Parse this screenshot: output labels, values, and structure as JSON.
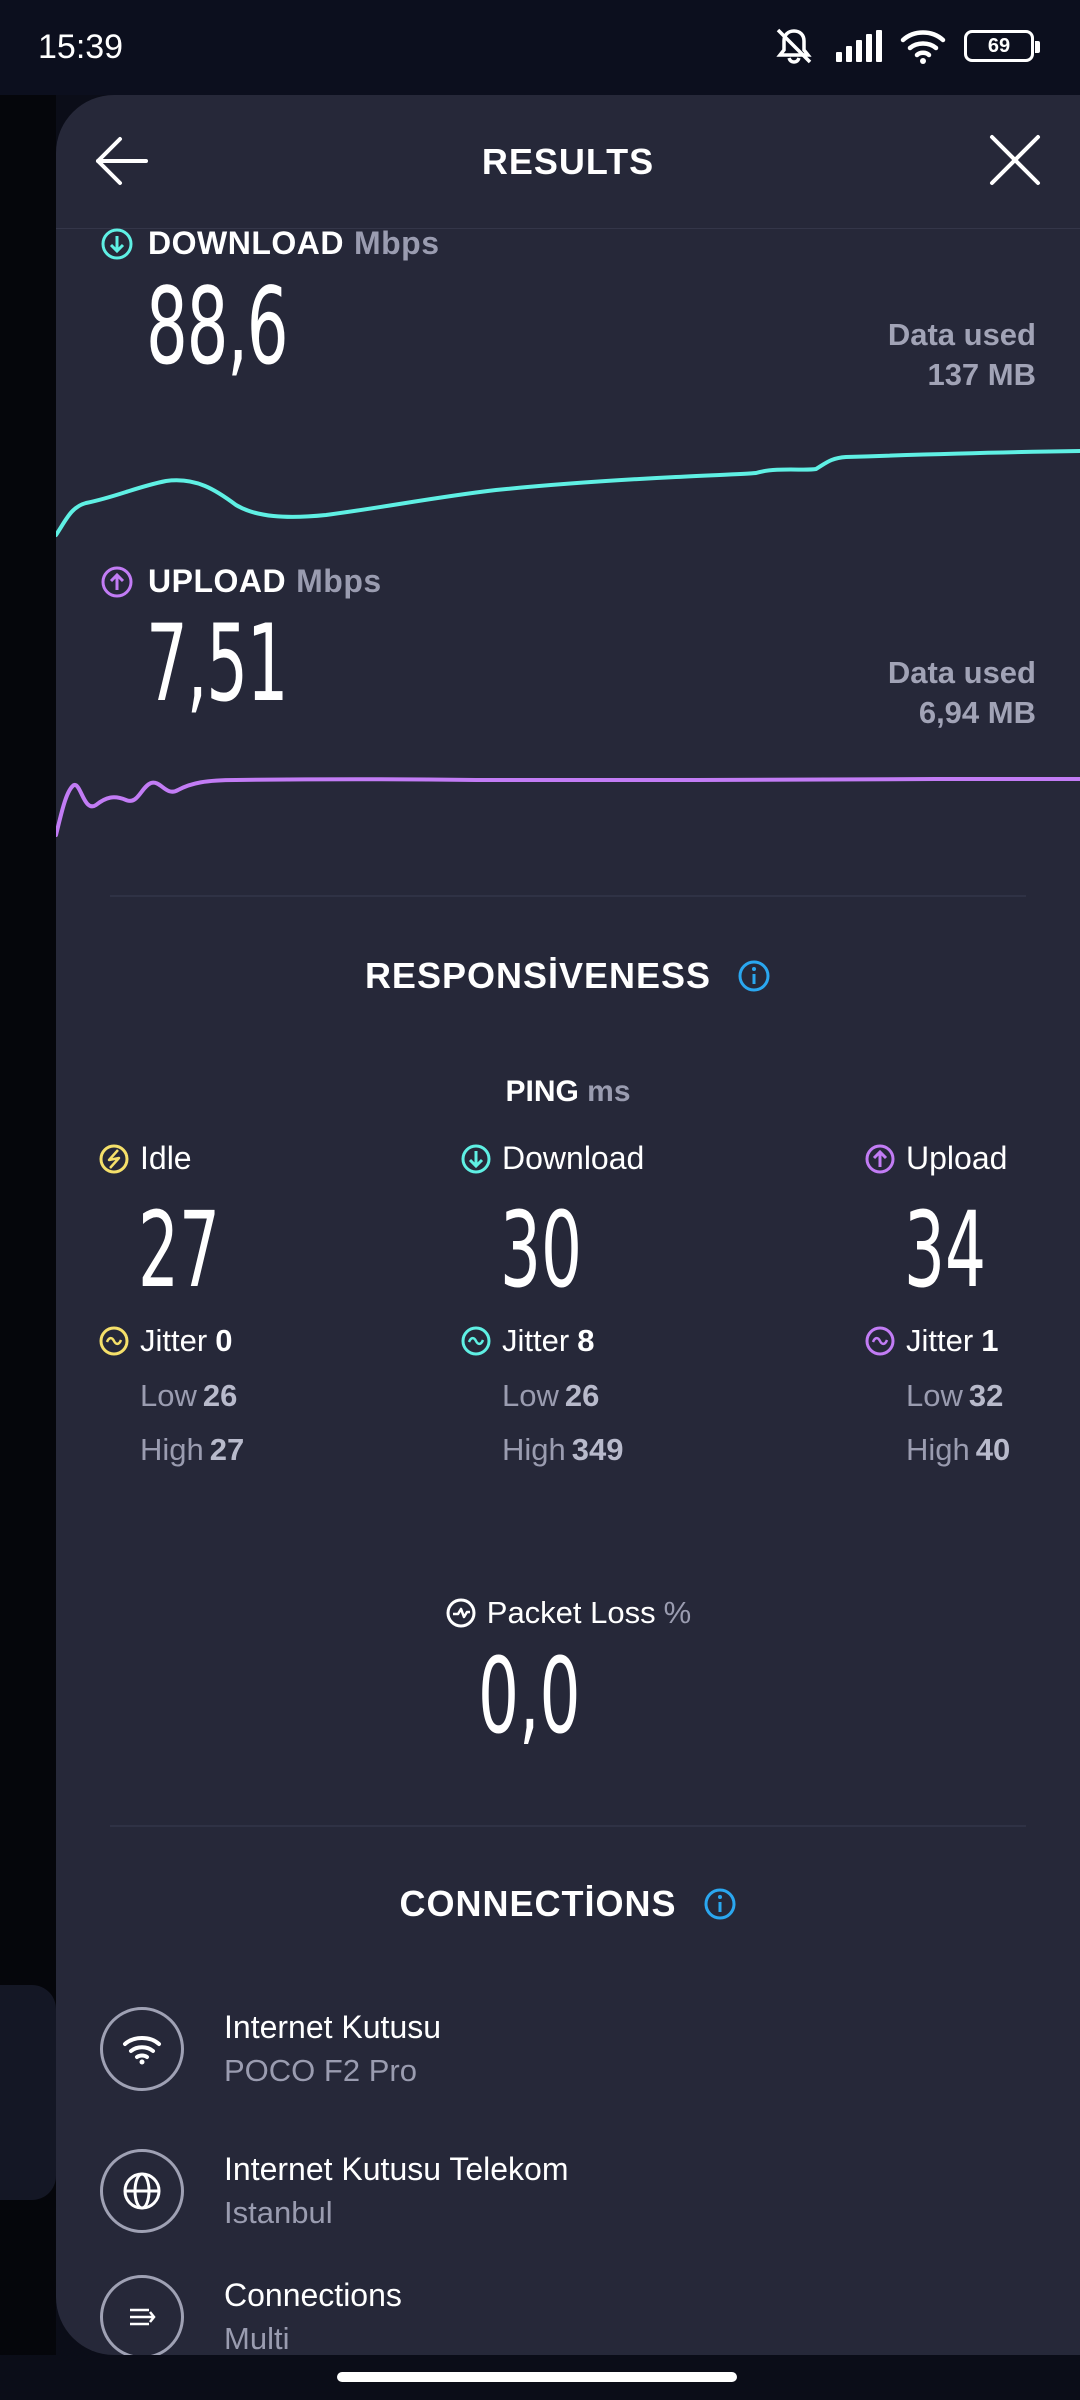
{
  "status_bar": {
    "time": "15:39",
    "battery": "69",
    "icons": [
      "bell-off-icon",
      "signal-icon",
      "wifi-icon",
      "battery-icon"
    ]
  },
  "header": {
    "title": "RESULTS",
    "back_icon": "arrow-left-icon",
    "close_icon": "close-icon"
  },
  "download": {
    "label": "DOWNLOAD",
    "unit": "Mbps",
    "value": "88,6",
    "data_used_label": "Data used",
    "data_used_value": "137 MB",
    "color": "#5ff0e4"
  },
  "upload": {
    "label": "UPLOAD",
    "unit": "Mbps",
    "value": "7,51",
    "data_used_label": "Data used",
    "data_used_value": "6,94 MB",
    "color": "#c27cf5"
  },
  "responsiveness": {
    "title": "RESPONSİVENESS",
    "ping_label": "PING",
    "ping_unit": "ms",
    "idle": {
      "label": "Idle",
      "value": "27",
      "jitter_label": "Jitter",
      "jitter": "0",
      "low_label": "Low",
      "low": "26",
      "high_label": "High",
      "high": "27",
      "color": "#f5e06a"
    },
    "download": {
      "label": "Download",
      "value": "30",
      "jitter_label": "Jitter",
      "jitter": "8",
      "low_label": "Low",
      "low": "26",
      "high_label": "High",
      "high": "349",
      "color": "#5ff0e4"
    },
    "upload": {
      "label": "Upload",
      "value": "34",
      "jitter_label": "Jitter",
      "jitter": "1",
      "low_label": "Low",
      "low": "32",
      "high_label": "High",
      "high": "40",
      "color": "#c27cf5"
    },
    "packet_loss_label": "Packet Loss",
    "packet_loss_unit": "%",
    "packet_loss_value": "0,0"
  },
  "connections": {
    "title": "CONNECTİONS",
    "items": [
      {
        "icon": "wifi-icon",
        "name": "Internet Kutusu",
        "sub": "POCO F2 Pro"
      },
      {
        "icon": "globe-icon",
        "name": "Internet Kutusu Telekom",
        "sub": "Istanbul"
      },
      {
        "icon": "multi-connection-icon",
        "name": "Connections",
        "sub": "Multi"
      }
    ]
  },
  "accent_info_color": "#2aa7f0"
}
